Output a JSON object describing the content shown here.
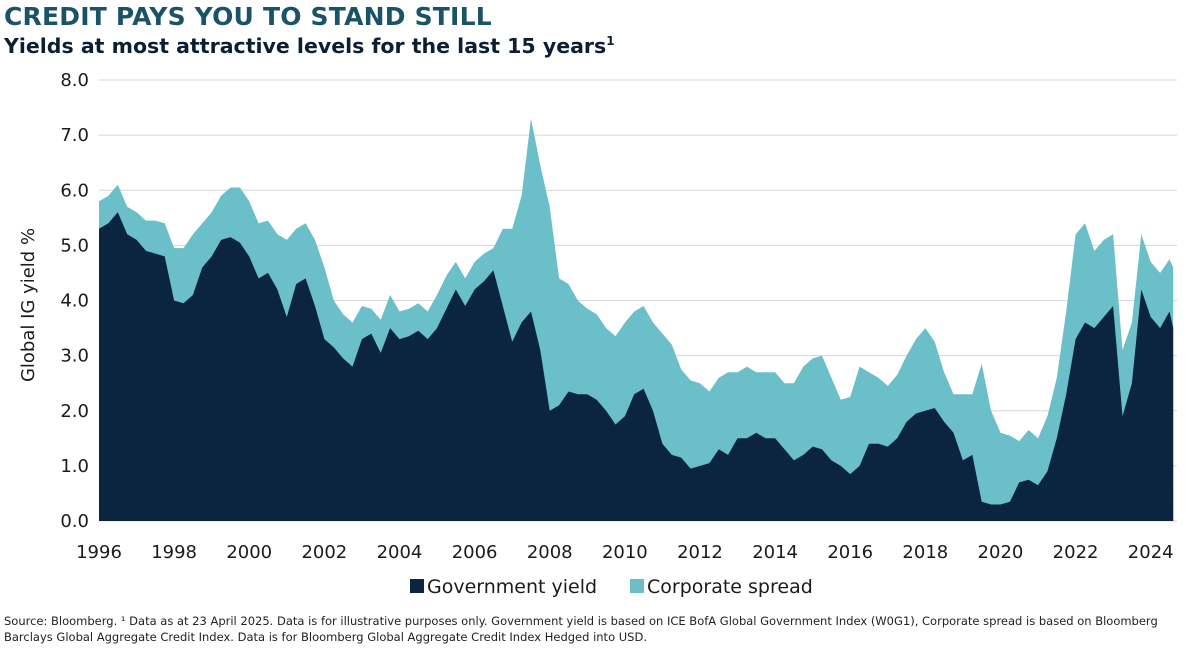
{
  "header": {
    "title": "CREDIT PAYS YOU TO STAND STILL",
    "subtitle": "Yields at most attractive levels for the last 15 years",
    "subtitle_sup": "1"
  },
  "footer": {
    "source": "Source: Bloomberg. ¹ Data as at 23 April  2025. Data is for illustrative purposes only. Government yield is based on ICE BofA Global Government Index (W0G1), Corporate spread is based on Bloomberg Barclays Global Aggregate Credit Index. Data is for Bloomberg Global Aggregate Credit Index Hedged into USD."
  },
  "chart_data": {
    "type": "area",
    "stacked": true,
    "ylabel": "Global IG yield %",
    "xlabel": "",
    "ylim": [
      0,
      8
    ],
    "yticks": [
      "0.0",
      "1.0",
      "2.0",
      "3.0",
      "4.0",
      "5.0",
      "6.0",
      "7.0",
      "8.0"
    ],
    "xlim": [
      1996,
      2024.7
    ],
    "xticks": [
      "1996",
      "1998",
      "2000",
      "2002",
      "2004",
      "2006",
      "2008",
      "2010",
      "2012",
      "2014",
      "2016",
      "2018",
      "2020",
      "2022",
      "2024"
    ],
    "grid": "horizontal",
    "legend_position": "bottom",
    "colors": {
      "government": "#0b2540",
      "spread": "#6bbfc9"
    },
    "x": [
      1996.0,
      1996.25,
      1996.5,
      1996.75,
      1997.0,
      1997.25,
      1997.5,
      1997.75,
      1998.0,
      1998.25,
      1998.5,
      1998.75,
      1999.0,
      1999.25,
      1999.5,
      1999.75,
      2000.0,
      2000.25,
      2000.5,
      2000.75,
      2001.0,
      2001.25,
      2001.5,
      2001.75,
      2002.0,
      2002.25,
      2002.5,
      2002.75,
      2003.0,
      2003.25,
      2003.5,
      2003.75,
      2004.0,
      2004.25,
      2004.5,
      2004.75,
      2005.0,
      2005.25,
      2005.5,
      2005.75,
      2006.0,
      2006.25,
      2006.5,
      2006.75,
      2007.0,
      2007.25,
      2007.5,
      2007.75,
      2008.0,
      2008.25,
      2008.5,
      2008.75,
      2009.0,
      2009.25,
      2009.5,
      2009.75,
      2010.0,
      2010.25,
      2010.5,
      2010.75,
      2011.0,
      2011.25,
      2011.5,
      2011.75,
      2012.0,
      2012.25,
      2012.5,
      2012.75,
      2013.0,
      2013.25,
      2013.5,
      2013.75,
      2014.0,
      2014.25,
      2014.5,
      2014.75,
      2015.0,
      2015.25,
      2015.5,
      2015.75,
      2016.0,
      2016.25,
      2016.5,
      2016.75,
      2017.0,
      2017.25,
      2017.5,
      2017.75,
      2018.0,
      2018.25,
      2018.5,
      2018.75,
      2019.0,
      2019.25,
      2019.5,
      2019.75,
      2020.0,
      2020.25,
      2020.5,
      2020.75,
      2021.0,
      2021.25,
      2021.5,
      2021.75,
      2022.0,
      2022.25,
      2022.5,
      2022.75,
      2023.0,
      2023.25,
      2023.5,
      2023.75,
      2024.0,
      2024.25,
      2024.5,
      2024.6
    ],
    "series": [
      {
        "name": "Government yield",
        "values": [
          5.3,
          5.4,
          5.6,
          5.2,
          5.1,
          4.9,
          4.85,
          4.8,
          4.0,
          3.95,
          4.1,
          4.6,
          4.8,
          5.1,
          5.15,
          5.05,
          4.8,
          4.4,
          4.5,
          4.2,
          3.7,
          4.3,
          4.4,
          3.9,
          3.3,
          3.15,
          2.95,
          2.8,
          3.3,
          3.4,
          3.05,
          3.5,
          3.3,
          3.35,
          3.45,
          3.3,
          3.5,
          3.85,
          4.2,
          3.9,
          4.2,
          4.35,
          4.55,
          3.9,
          3.25,
          3.6,
          3.8,
          3.1,
          2.0,
          2.1,
          2.35,
          2.3,
          2.3,
          2.2,
          2.0,
          1.75,
          1.9,
          2.3,
          2.4,
          2.0,
          1.4,
          1.2,
          1.15,
          0.95,
          1.0,
          1.05,
          1.3,
          1.2,
          1.5,
          1.5,
          1.6,
          1.5,
          1.5,
          1.3,
          1.1,
          1.2,
          1.35,
          1.3,
          1.1,
          1.0,
          0.85,
          1.0,
          1.4,
          1.4,
          1.35,
          1.5,
          1.8,
          1.95,
          2.0,
          2.05,
          1.8,
          1.6,
          1.1,
          1.2,
          0.35,
          0.3,
          0.3,
          0.35,
          0.7,
          0.75,
          0.65,
          0.9,
          1.5,
          2.3,
          3.3,
          3.6,
          3.5,
          3.7,
          3.9,
          1.9,
          2.5,
          4.2,
          3.7,
          3.5,
          3.8,
          3.5
        ]
      },
      {
        "name": "Corporate spread",
        "values": [
          0.5,
          0.5,
          0.5,
          0.5,
          0.5,
          0.55,
          0.6,
          0.6,
          0.95,
          1.0,
          1.1,
          0.8,
          0.8,
          0.8,
          0.9,
          1.0,
          1.0,
          1.0,
          0.95,
          1.0,
          1.4,
          1.0,
          1.0,
          1.2,
          1.3,
          0.85,
          0.8,
          0.8,
          0.6,
          0.45,
          0.6,
          0.6,
          0.5,
          0.5,
          0.5,
          0.5,
          0.6,
          0.6,
          0.5,
          0.5,
          0.5,
          0.5,
          0.4,
          1.4,
          2.05,
          2.3,
          3.5,
          3.35,
          3.7,
          2.3,
          1.95,
          1.7,
          1.55,
          1.55,
          1.5,
          1.6,
          1.7,
          1.5,
          1.5,
          1.6,
          2.0,
          2.0,
          1.6,
          1.6,
          1.5,
          1.3,
          1.3,
          1.5,
          1.2,
          1.3,
          1.1,
          1.2,
          1.2,
          1.2,
          1.4,
          1.6,
          1.6,
          1.7,
          1.5,
          1.2,
          1.4,
          1.8,
          1.3,
          1.2,
          1.1,
          1.15,
          1.2,
          1.35,
          1.5,
          1.2,
          0.9,
          0.7,
          1.2,
          1.1,
          2.5,
          1.7,
          1.3,
          1.2,
          0.75,
          0.9,
          0.85,
          1.0,
          1.1,
          1.5,
          1.9,
          1.8,
          1.4,
          1.4,
          1.3,
          1.2,
          1.1,
          1.0,
          1.0,
          1.0,
          0.95,
          1.1
        ]
      }
    ]
  }
}
